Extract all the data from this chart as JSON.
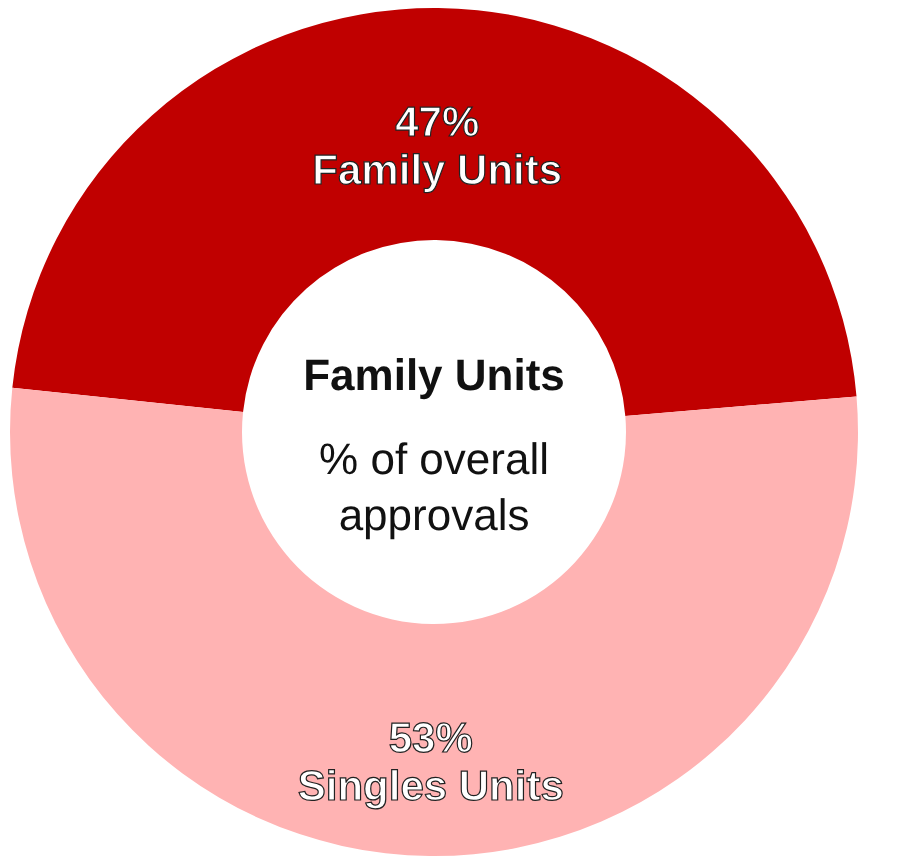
{
  "chart_data": {
    "type": "donut",
    "categories": [
      "Family Units",
      "Singles Units"
    ],
    "values": [
      47,
      53
    ],
    "colors": [
      "#c00000",
      "#ffb3b3"
    ],
    "value_labels": [
      "47%",
      "53%"
    ],
    "annotations": [
      "Family Units",
      "% of overall approvals"
    ],
    "legend": false
  }
}
